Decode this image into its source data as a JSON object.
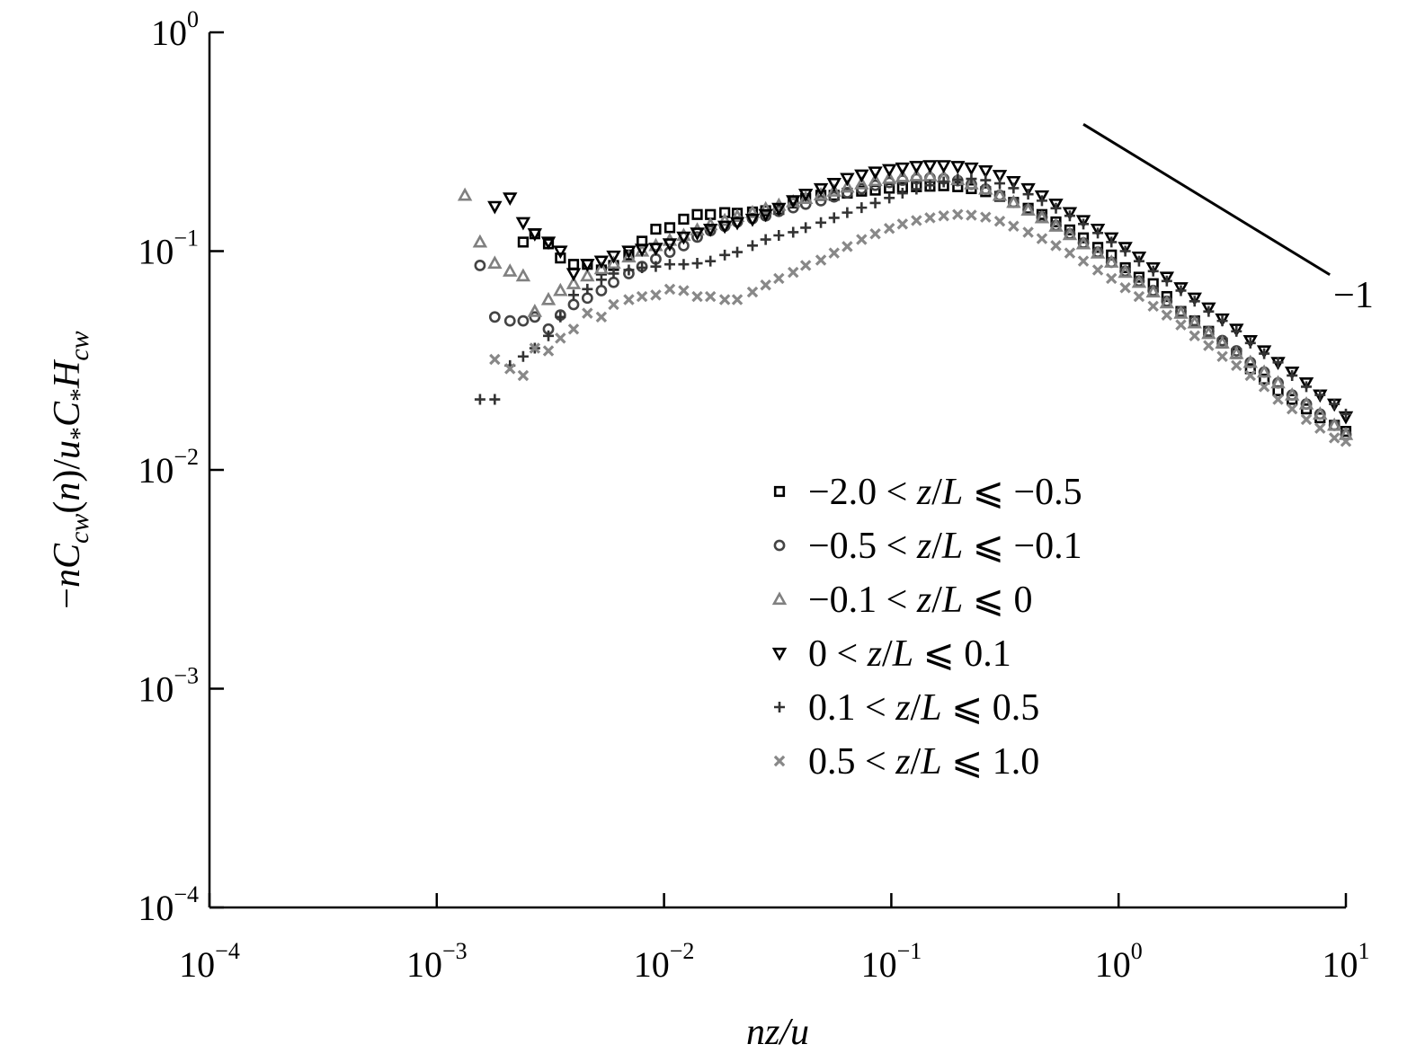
{
  "chart_data": {
    "type": "scatter",
    "title": "",
    "xlabel": "nz/u",
    "ylabel_parts": [
      "−",
      "nC",
      "cw",
      "(",
      "n",
      ")/",
      "u",
      "*",
      "C",
      "*",
      "H",
      "cw"
    ],
    "xscale": "log",
    "yscale": "log",
    "xlim": [
      0.0001,
      10
    ],
    "ylim": [
      0.0001,
      1
    ],
    "x_ticks": [
      {
        "base": "10",
        "exp": "−4",
        "value": 0.0001
      },
      {
        "base": "10",
        "exp": "−3",
        "value": 0.001
      },
      {
        "base": "10",
        "exp": "−2",
        "value": 0.01
      },
      {
        "base": "10",
        "exp": "−1",
        "value": 0.1
      },
      {
        "base": "10",
        "exp": "0",
        "value": 1
      },
      {
        "base": "10",
        "exp": "1",
        "value": 10
      }
    ],
    "y_ticks": [
      {
        "base": "10",
        "exp": "−4",
        "value": 0.0001
      },
      {
        "base": "10",
        "exp": "−3",
        "value": 0.001
      },
      {
        "base": "10",
        "exp": "−2",
        "value": 0.01
      },
      {
        "base": "10",
        "exp": "−1",
        "value": 0.1
      },
      {
        "base": "10",
        "exp": "0",
        "value": 1
      }
    ],
    "grid": false,
    "legend_position": "lower-right",
    "slope_annotation": {
      "text": "−1",
      "x": [
        0.7,
        8.5
      ],
      "y": [
        0.38,
        0.078
      ]
    },
    "series": [
      {
        "name_parts": [
          {
            "t": "−2.0 < ",
            "i": false
          },
          {
            "t": "z",
            "i": true
          },
          {
            "t": "/",
            "i": false
          },
          {
            "t": "L",
            "i": true
          },
          {
            "t": " ⩽ −0.5",
            "i": false
          }
        ],
        "marker": "square",
        "color": "#000000",
        "x": [
          0.0024,
          0.0027,
          0.0031,
          0.0035,
          0.004,
          0.0046,
          0.0053,
          0.006,
          0.007,
          0.008,
          0.0092,
          0.0106,
          0.0122,
          0.014,
          0.016,
          0.0185,
          0.021,
          0.0245,
          0.028,
          0.032,
          0.037,
          0.042,
          0.049,
          0.056,
          0.064,
          0.074,
          0.085,
          0.098,
          0.112,
          0.129,
          0.148,
          0.17,
          0.196,
          0.225,
          0.26,
          0.3,
          0.345,
          0.4,
          0.46,
          0.53,
          0.61,
          0.7,
          0.81,
          0.93,
          1.07,
          1.23,
          1.42,
          1.63,
          1.88,
          2.16,
          2.49,
          2.86,
          3.3,
          3.8,
          4.37,
          5.03,
          5.8,
          6.7,
          7.7,
          8.9,
          10.0
        ],
        "y": [
          0.11,
          0.12,
          0.108,
          0.093,
          0.087,
          0.087,
          0.082,
          0.086,
          0.096,
          0.111,
          0.126,
          0.128,
          0.14,
          0.147,
          0.147,
          0.15,
          0.149,
          0.151,
          0.153,
          0.155,
          0.166,
          0.174,
          0.18,
          0.18,
          0.184,
          0.188,
          0.19,
          0.194,
          0.195,
          0.197,
          0.198,
          0.199,
          0.197,
          0.193,
          0.187,
          0.178,
          0.167,
          0.157,
          0.147,
          0.136,
          0.125,
          0.115,
          0.104,
          0.096,
          0.084,
          0.076,
          0.071,
          0.062,
          0.053,
          0.048,
          0.043,
          0.038,
          0.034,
          0.029,
          0.026,
          0.023,
          0.021,
          0.019,
          0.0173,
          0.016,
          0.015
        ]
      },
      {
        "name_parts": [
          {
            "t": "−0.5 < ",
            "i": false
          },
          {
            "t": "z",
            "i": true
          },
          {
            "t": "/",
            "i": false
          },
          {
            "t": "L",
            "i": true
          },
          {
            "t": " ⩽ −0.1",
            "i": false
          }
        ],
        "marker": "circle",
        "color": "#444444",
        "x": [
          0.00155,
          0.0018,
          0.0021,
          0.0024,
          0.0027,
          0.0031,
          0.0035,
          0.004,
          0.0046,
          0.0053,
          0.006,
          0.007,
          0.008,
          0.0092,
          0.0106,
          0.0122,
          0.014,
          0.016,
          0.0185,
          0.021,
          0.0245,
          0.028,
          0.032,
          0.037,
          0.042,
          0.049,
          0.056,
          0.064,
          0.074,
          0.085,
          0.098,
          0.112,
          0.129,
          0.148,
          0.17,
          0.196,
          0.225,
          0.26,
          0.3,
          0.345,
          0.4,
          0.46,
          0.53,
          0.61,
          0.7,
          0.81,
          0.93,
          1.07,
          1.23,
          1.42,
          1.63,
          1.88,
          2.16,
          2.49,
          2.86,
          3.3,
          3.8,
          4.37,
          5.03,
          5.8,
          6.7,
          7.7,
          8.9,
          10.0
        ],
        "y": [
          0.086,
          0.05,
          0.048,
          0.048,
          0.05,
          0.044,
          0.051,
          0.057,
          0.061,
          0.066,
          0.072,
          0.079,
          0.085,
          0.092,
          0.099,
          0.106,
          0.116,
          0.124,
          0.13,
          0.136,
          0.141,
          0.145,
          0.152,
          0.158,
          0.164,
          0.17,
          0.177,
          0.185,
          0.193,
          0.2,
          0.206,
          0.211,
          0.214,
          0.216,
          0.214,
          0.21,
          0.202,
          0.192,
          0.18,
          0.167,
          0.155,
          0.143,
          0.131,
          0.12,
          0.109,
          0.099,
          0.089,
          0.081,
          0.073,
          0.066,
          0.059,
          0.053,
          0.048,
          0.043,
          0.039,
          0.035,
          0.031,
          0.028,
          0.025,
          0.022,
          0.02,
          0.018,
          0.016,
          0.0145
        ]
      },
      {
        "name_parts": [
          {
            "t": "−0.1 < ",
            "i": false
          },
          {
            "t": "z",
            "i": true
          },
          {
            "t": "/",
            "i": false
          },
          {
            "t": "L",
            "i": true
          },
          {
            "t": " ⩽ 0",
            "i": false
          }
        ],
        "marker": "triangle-up",
        "color": "#808080",
        "x": [
          0.00133,
          0.00155,
          0.0018,
          0.0021,
          0.0024,
          0.0027,
          0.0031,
          0.0035,
          0.004,
          0.0046,
          0.0053,
          0.006,
          0.007,
          0.008,
          0.0092,
          0.0106,
          0.0122,
          0.014,
          0.016,
          0.0185,
          0.021,
          0.0245,
          0.028,
          0.032,
          0.037,
          0.042,
          0.049,
          0.056,
          0.064,
          0.074,
          0.085,
          0.098,
          0.112,
          0.129,
          0.148,
          0.17,
          0.196,
          0.225,
          0.26,
          0.3,
          0.345,
          0.4,
          0.46,
          0.53,
          0.61,
          0.7,
          0.81,
          0.93,
          1.07,
          1.23,
          1.42,
          1.63,
          1.88,
          2.16,
          2.49,
          2.86,
          3.3,
          3.8,
          4.37,
          5.03,
          5.8,
          6.7,
          7.7,
          8.9,
          10.0
        ],
        "y": [
          0.18,
          0.11,
          0.088,
          0.081,
          0.077,
          0.053,
          0.06,
          0.066,
          0.071,
          0.077,
          0.083,
          0.088,
          0.094,
          0.1,
          0.106,
          0.112,
          0.118,
          0.125,
          0.132,
          0.138,
          0.144,
          0.15,
          0.156,
          0.162,
          0.168,
          0.174,
          0.181,
          0.188,
          0.196,
          0.203,
          0.21,
          0.215,
          0.219,
          0.221,
          0.221,
          0.218,
          0.212,
          0.203,
          0.192,
          0.18,
          0.167,
          0.154,
          0.142,
          0.13,
          0.119,
          0.108,
          0.098,
          0.089,
          0.08,
          0.072,
          0.065,
          0.058,
          0.052,
          0.047,
          0.042,
          0.038,
          0.034,
          0.031,
          0.028,
          0.025,
          0.022,
          0.02,
          0.018,
          0.016,
          0.0145
        ]
      },
      {
        "name_parts": [
          {
            "t": "0 < ",
            "i": false
          },
          {
            "t": "z",
            "i": true
          },
          {
            "t": "/",
            "i": false
          },
          {
            "t": "L",
            "i": true
          },
          {
            "t": " ⩽ 0.1",
            "i": false
          }
        ],
        "marker": "triangle-down",
        "color": "#000000",
        "x": [
          0.0018,
          0.0021,
          0.0024,
          0.0027,
          0.0031,
          0.0035,
          0.004,
          0.0046,
          0.0053,
          0.006,
          0.007,
          0.008,
          0.0092,
          0.0106,
          0.0122,
          0.014,
          0.016,
          0.0185,
          0.021,
          0.0245,
          0.028,
          0.032,
          0.037,
          0.042,
          0.049,
          0.056,
          0.064,
          0.074,
          0.085,
          0.098,
          0.112,
          0.129,
          0.148,
          0.17,
          0.196,
          0.225,
          0.26,
          0.3,
          0.345,
          0.4,
          0.46,
          0.53,
          0.61,
          0.7,
          0.81,
          0.93,
          1.07,
          1.23,
          1.42,
          1.63,
          1.88,
          2.16,
          2.49,
          2.86,
          3.3,
          3.8,
          4.37,
          5.03,
          5.8,
          6.7,
          7.7,
          8.9,
          10.0
        ],
        "y": [
          0.16,
          0.175,
          0.135,
          0.12,
          0.11,
          0.1,
          0.079,
          0.087,
          0.09,
          0.095,
          0.1,
          0.102,
          0.103,
          0.108,
          0.116,
          0.121,
          0.126,
          0.13,
          0.135,
          0.14,
          0.147,
          0.157,
          0.17,
          0.182,
          0.193,
          0.204,
          0.215,
          0.223,
          0.23,
          0.236,
          0.24,
          0.244,
          0.246,
          0.246,
          0.244,
          0.24,
          0.233,
          0.222,
          0.208,
          0.193,
          0.179,
          0.164,
          0.15,
          0.138,
          0.126,
          0.115,
          0.104,
          0.094,
          0.084,
          0.076,
          0.068,
          0.061,
          0.055,
          0.049,
          0.044,
          0.039,
          0.035,
          0.031,
          0.028,
          0.025,
          0.022,
          0.02,
          0.0175
        ]
      },
      {
        "name_parts": [
          {
            "t": "0.1 < ",
            "i": false
          },
          {
            "t": "z",
            "i": true
          },
          {
            "t": "/",
            "i": false
          },
          {
            "t": "L",
            "i": true
          },
          {
            "t": " ⩽ 0.5",
            "i": false
          }
        ],
        "marker": "plus",
        "color": "#333333",
        "x": [
          0.00155,
          0.0018,
          0.0021,
          0.0024,
          0.0027,
          0.0031,
          0.0035,
          0.004,
          0.0046,
          0.0053,
          0.006,
          0.007,
          0.008,
          0.0092,
          0.0106,
          0.0122,
          0.014,
          0.016,
          0.0185,
          0.021,
          0.0245,
          0.028,
          0.032,
          0.037,
          0.042,
          0.049,
          0.056,
          0.064,
          0.074,
          0.085,
          0.098,
          0.112,
          0.129,
          0.148,
          0.17,
          0.196,
          0.225,
          0.26,
          0.3,
          0.345,
          0.4,
          0.46,
          0.53,
          0.61,
          0.7,
          0.81,
          0.93,
          1.07,
          1.23,
          1.42,
          1.63,
          1.88,
          2.16,
          2.49,
          2.86,
          3.3,
          3.8,
          4.37,
          5.03,
          5.8,
          6.7,
          7.7,
          8.9,
          10.0
        ],
        "y": [
          0.021,
          0.021,
          0.03,
          0.033,
          0.036,
          0.041,
          0.05,
          0.063,
          0.067,
          0.074,
          0.079,
          0.082,
          0.084,
          0.085,
          0.087,
          0.087,
          0.088,
          0.09,
          0.096,
          0.099,
          0.106,
          0.113,
          0.118,
          0.122,
          0.128,
          0.135,
          0.142,
          0.15,
          0.158,
          0.166,
          0.175,
          0.184,
          0.192,
          0.2,
          0.207,
          0.212,
          0.214,
          0.211,
          0.204,
          0.194,
          0.182,
          0.17,
          0.157,
          0.145,
          0.133,
          0.121,
          0.11,
          0.1,
          0.09,
          0.081,
          0.073,
          0.066,
          0.059,
          0.053,
          0.048,
          0.043,
          0.038,
          0.034,
          0.031,
          0.027,
          0.024,
          0.022,
          0.02,
          0.018
        ]
      },
      {
        "name_parts": [
          {
            "t": "0.5 < ",
            "i": false
          },
          {
            "t": "z",
            "i": true
          },
          {
            "t": "/",
            "i": false
          },
          {
            "t": "L",
            "i": true
          },
          {
            "t": " ⩽ 1.0",
            "i": false
          }
        ],
        "marker": "x",
        "color": "#888888",
        "x": [
          0.0018,
          0.0021,
          0.0024,
          0.0027,
          0.0031,
          0.0035,
          0.004,
          0.0046,
          0.0053,
          0.006,
          0.007,
          0.008,
          0.0092,
          0.0106,
          0.0122,
          0.014,
          0.016,
          0.0185,
          0.021,
          0.0245,
          0.028,
          0.032,
          0.037,
          0.042,
          0.049,
          0.056,
          0.064,
          0.074,
          0.085,
          0.098,
          0.112,
          0.129,
          0.148,
          0.17,
          0.196,
          0.225,
          0.26,
          0.3,
          0.345,
          0.4,
          0.46,
          0.53,
          0.61,
          0.7,
          0.81,
          0.93,
          1.07,
          1.23,
          1.42,
          1.63,
          1.88,
          2.16,
          2.49,
          2.86,
          3.3,
          3.8,
          4.37,
          5.03,
          5.8,
          6.7,
          7.7,
          8.9,
          10.0
        ],
        "y": [
          0.032,
          0.029,
          0.027,
          0.036,
          0.035,
          0.04,
          0.044,
          0.052,
          0.05,
          0.057,
          0.06,
          0.062,
          0.063,
          0.067,
          0.066,
          0.062,
          0.062,
          0.06,
          0.06,
          0.065,
          0.07,
          0.075,
          0.08,
          0.086,
          0.091,
          0.098,
          0.105,
          0.113,
          0.12,
          0.127,
          0.133,
          0.138,
          0.142,
          0.145,
          0.147,
          0.146,
          0.143,
          0.137,
          0.13,
          0.122,
          0.114,
          0.106,
          0.098,
          0.09,
          0.082,
          0.075,
          0.068,
          0.062,
          0.056,
          0.051,
          0.046,
          0.041,
          0.037,
          0.033,
          0.03,
          0.027,
          0.024,
          0.021,
          0.019,
          0.017,
          0.0155,
          0.014,
          0.0135
        ]
      }
    ]
  }
}
